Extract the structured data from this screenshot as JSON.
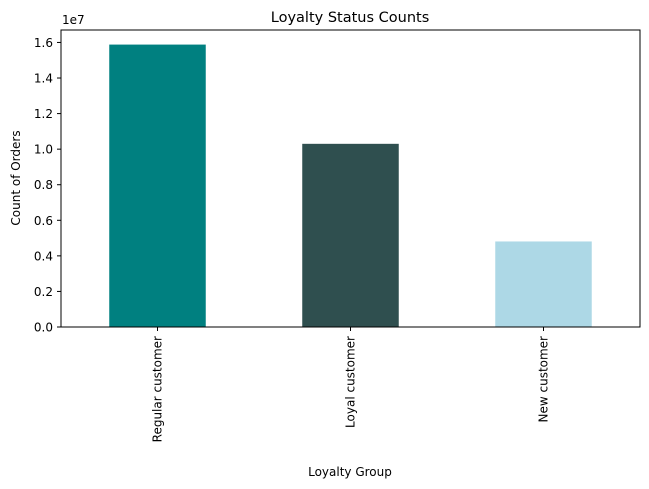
{
  "chart_data": {
    "type": "bar",
    "title": "Loyalty Status Counts",
    "xlabel": "Loyalty Group",
    "ylabel": "Count of Orders",
    "y_offset_label": "1e7",
    "categories": [
      "Regular customer",
      "Loyal customer",
      "New customer"
    ],
    "values": [
      15880000,
      10300000,
      4810000
    ],
    "colors": [
      "#008080",
      "#2f4f4f",
      "#add8e6"
    ],
    "ylim": [
      0,
      16700000
    ],
    "y_ticks": [
      0,
      2000000,
      4000000,
      6000000,
      8000000,
      10000000,
      12000000,
      14000000,
      16000000
    ],
    "y_tick_labels": [
      "0.0",
      "0.2",
      "0.4",
      "0.6",
      "0.8",
      "1.0",
      "1.2",
      "1.4",
      "1.6"
    ],
    "grid": false,
    "legend": "none"
  }
}
